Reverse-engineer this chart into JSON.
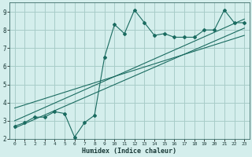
{
  "xlabel": "Humidex (Indice chaleur)",
  "bg_color": "#d4eeec",
  "grid_color": "#a8ccc8",
  "line_color": "#1a6b60",
  "xlim": [
    -0.5,
    23.5
  ],
  "ylim": [
    2,
    9.5
  ],
  "xticks": [
    0,
    1,
    2,
    3,
    4,
    5,
    6,
    7,
    8,
    9,
    10,
    11,
    12,
    13,
    14,
    15,
    16,
    17,
    18,
    19,
    20,
    21,
    22,
    23
  ],
  "yticks": [
    2,
    3,
    4,
    5,
    6,
    7,
    8,
    9
  ],
  "main_x": [
    0,
    1,
    2,
    3,
    4,
    5,
    6,
    7,
    8,
    9,
    10,
    11,
    12,
    13,
    14,
    15,
    16,
    17,
    18,
    19,
    20,
    21,
    22,
    23
  ],
  "main_y": [
    2.7,
    2.9,
    3.2,
    3.2,
    3.5,
    3.4,
    2.1,
    2.9,
    3.3,
    6.5,
    8.3,
    7.8,
    9.1,
    8.4,
    7.7,
    7.8,
    7.6,
    7.6,
    7.6,
    8.0,
    8.0,
    9.1,
    8.4,
    8.4
  ],
  "line1_x": [
    0,
    23
  ],
  "line1_y": [
    2.6,
    8.1
  ],
  "line2_x": [
    0,
    23
  ],
  "line2_y": [
    3.0,
    8.6
  ],
  "line3_x": [
    0,
    23
  ],
  "line3_y": [
    3.7,
    7.7
  ]
}
